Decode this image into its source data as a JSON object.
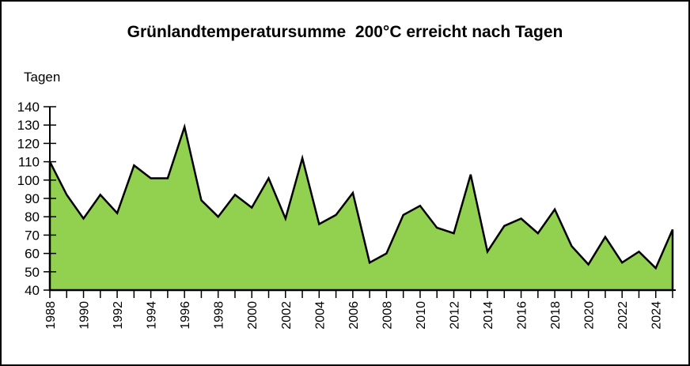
{
  "figure": {
    "title": "Grünlandtemperatursumme  200°C erreicht nach Tagen",
    "y_unit_label": "Tagen"
  },
  "colors": {
    "area_fill": "#92D050",
    "series_line": "#000000",
    "axis": "#000000",
    "text": "#000000",
    "background": "#FFFFFF",
    "figure_border": "#000000"
  },
  "chart_data": {
    "type": "area",
    "title": "Grünlandtemperatursumme  200°C erreicht nach Tagen",
    "xlabel": "",
    "ylabel": "Tagen",
    "x": [
      1988,
      1989,
      1990,
      1991,
      1992,
      1993,
      1994,
      1995,
      1996,
      1997,
      1998,
      1999,
      2000,
      2001,
      2002,
      2003,
      2004,
      2005,
      2006,
      2007,
      2008,
      2009,
      2010,
      2011,
      2012,
      2013,
      2014,
      2015,
      2016,
      2017,
      2018,
      2019,
      2020,
      2021,
      2022,
      2023,
      2024,
      2025
    ],
    "values": [
      110,
      92,
      79,
      92,
      82,
      108,
      101,
      101,
      129,
      89,
      80,
      92,
      85,
      101,
      79,
      112,
      76,
      81,
      93,
      55,
      60,
      81,
      86,
      74,
      71,
      103,
      61,
      75,
      79,
      71,
      84,
      64,
      54,
      69,
      55,
      61,
      52,
      73
    ],
    "ylim": [
      40,
      140
    ],
    "y_ticks": [
      40,
      50,
      60,
      70,
      80,
      90,
      100,
      110,
      120,
      130,
      140
    ],
    "x_tick_labels": [
      "1988",
      "1990",
      "1992",
      "1994",
      "1996",
      "1998",
      "2000",
      "2002",
      "2004",
      "2006",
      "2008",
      "2010",
      "2012",
      "2014",
      "2016",
      "2018",
      "2020",
      "2022",
      "2024"
    ],
    "grid": false,
    "legend": false
  }
}
